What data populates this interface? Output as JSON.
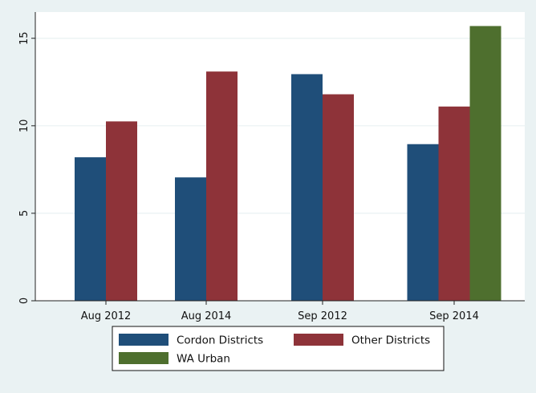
{
  "chart_data": {
    "type": "bar",
    "title": "",
    "xlabel": "",
    "ylabel": "",
    "categories": [
      "Aug 2012",
      "Aug 2014",
      "Sep 2012",
      "Sep 2014"
    ],
    "series": [
      {
        "name": "Cordon Districts",
        "color": "#1f4e79",
        "values": [
          8.2,
          7.05,
          12.95,
          8.95
        ]
      },
      {
        "name": "Other Districts",
        "color": "#8e3339",
        "values": [
          10.25,
          13.1,
          11.8,
          11.1
        ]
      },
      {
        "name": "WA Urban",
        "color": "#4e6f2e",
        "values": [
          null,
          null,
          null,
          15.7
        ]
      }
    ],
    "ylim": [
      0,
      16.5
    ],
    "yticks": [
      0,
      5,
      10,
      15
    ],
    "grid": true,
    "legend": {
      "position": "bottom",
      "columns": 2
    },
    "colors": {
      "background": "#eaf2f3",
      "plot_background": "#ffffff",
      "grid": "#eaf2f3"
    }
  }
}
